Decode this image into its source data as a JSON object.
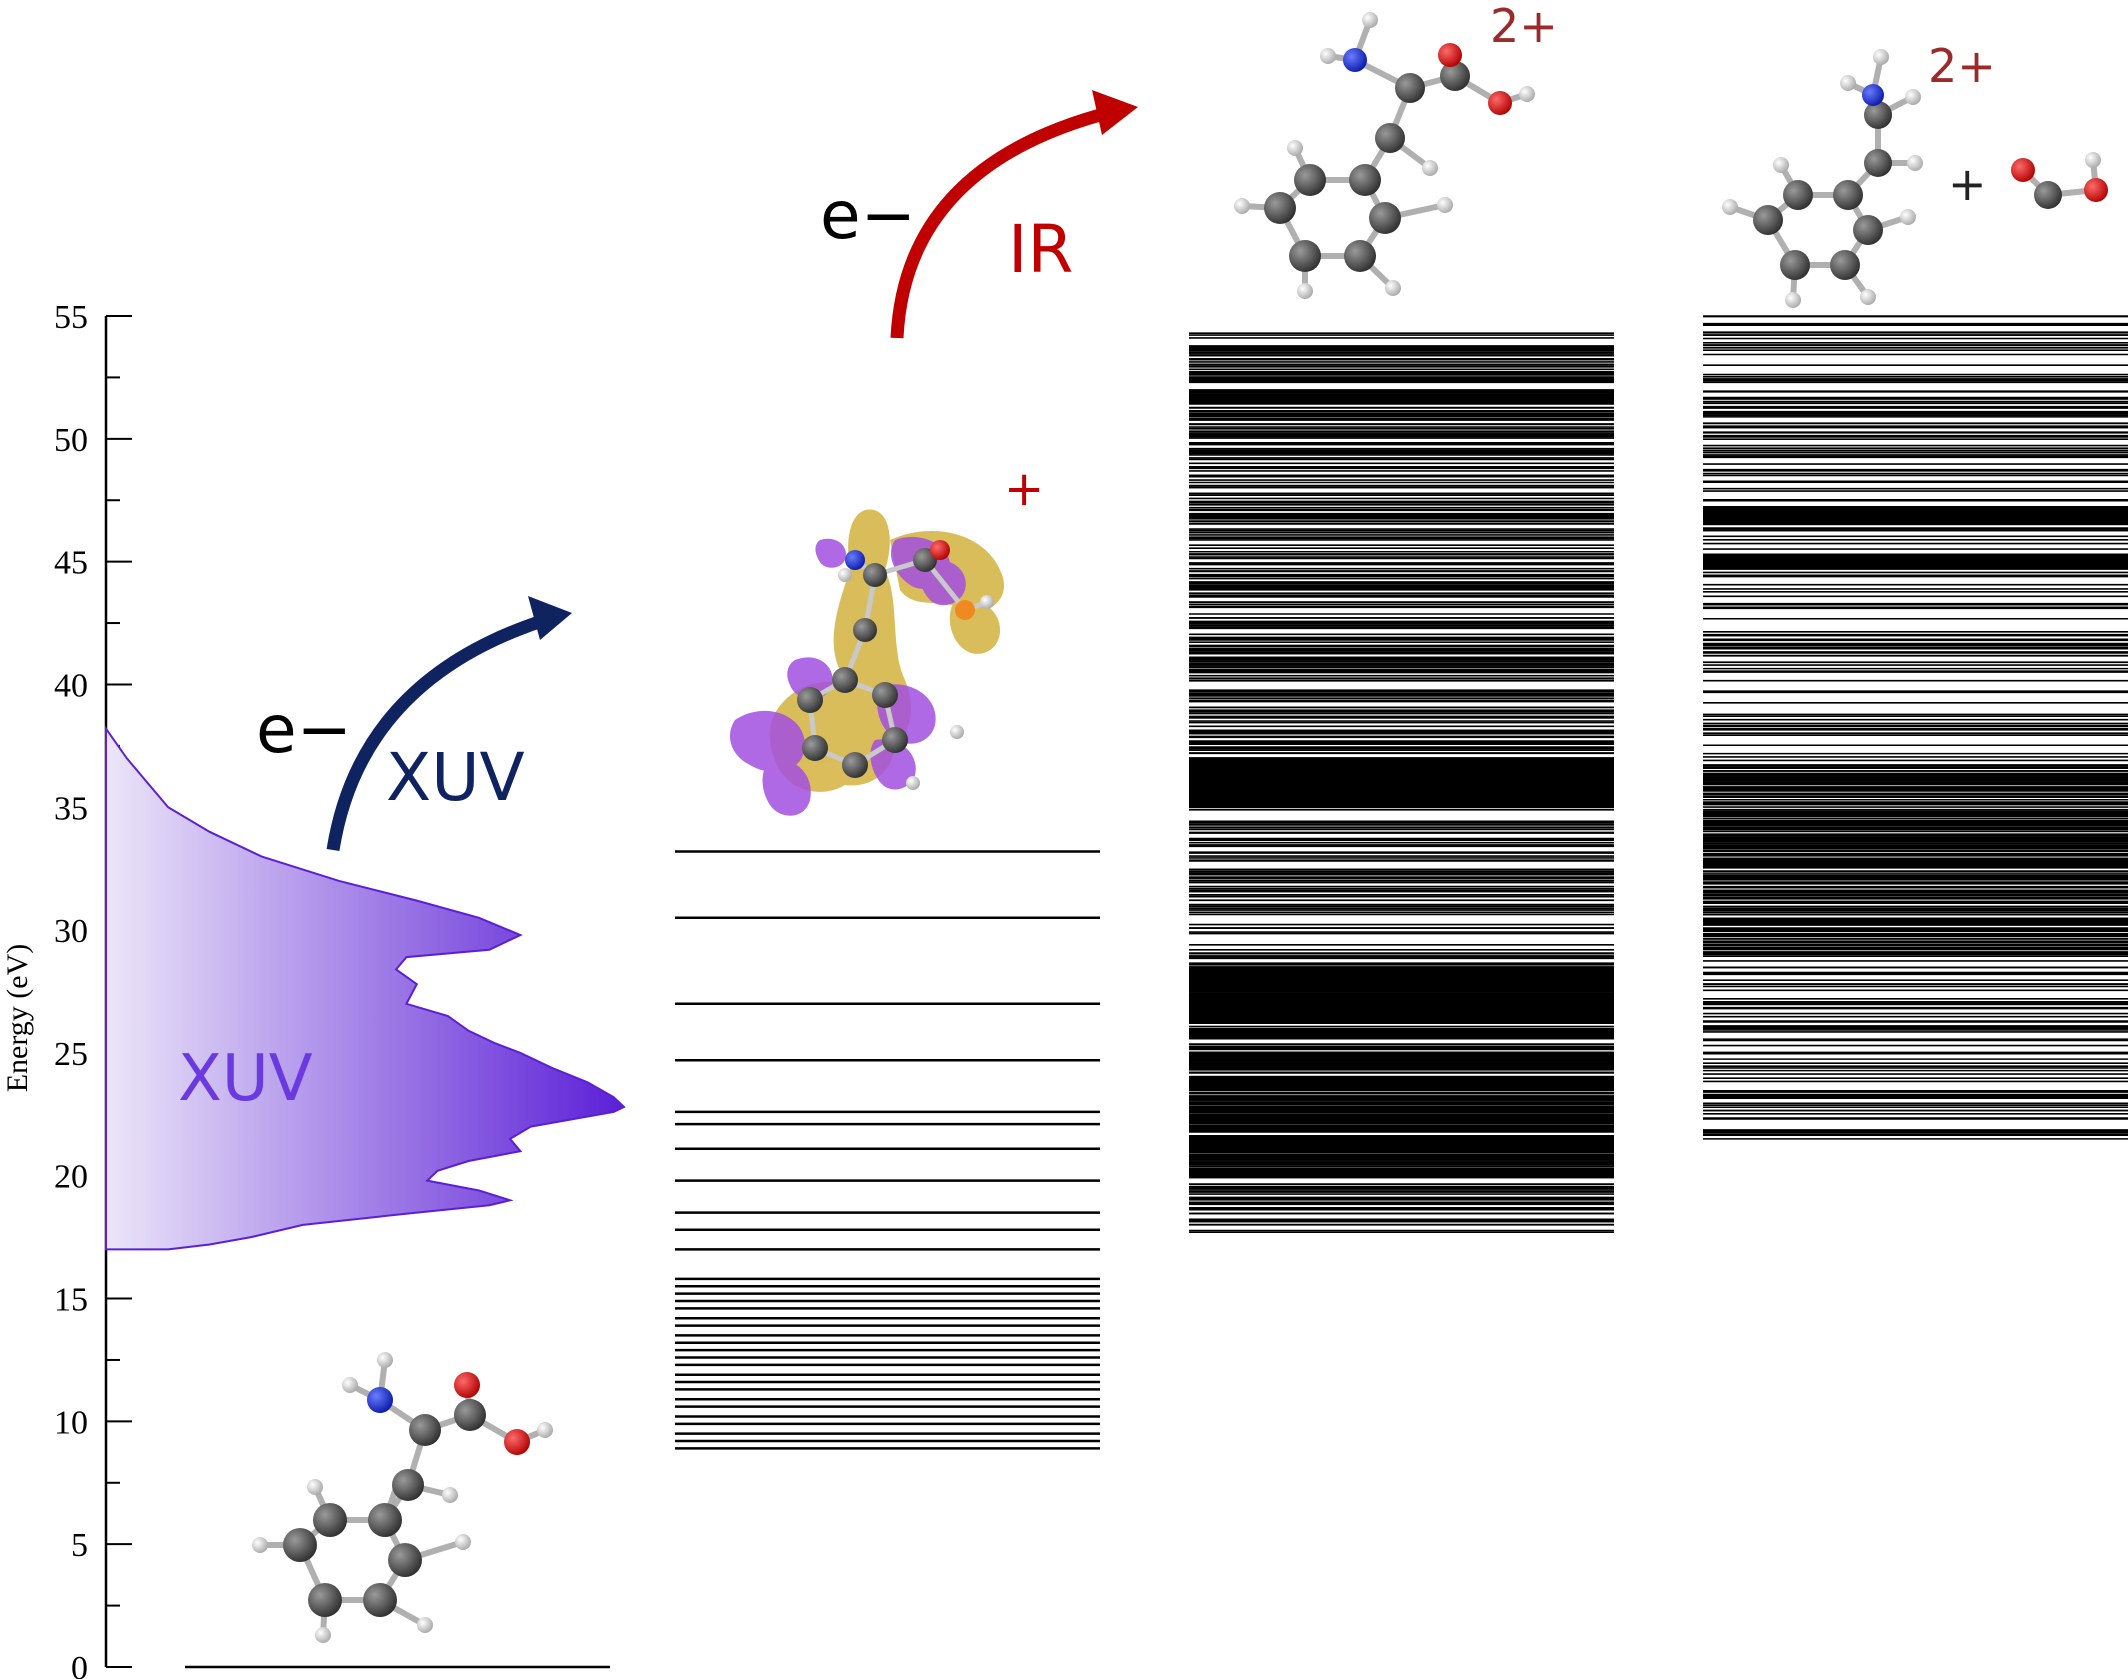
{
  "axis": {
    "title": "Energy (eV)",
    "min": 0,
    "max": 55,
    "major_ticks": [
      0,
      5,
      10,
      15,
      20,
      25,
      30,
      35,
      40,
      45,
      50,
      55
    ],
    "minor_step": 2.5
  },
  "colors": {
    "xuv_dark": "#5b1fd6",
    "xuv_light": "#ece6f9",
    "xuv_arrow": "#0e2360",
    "ir_arrow": "#c00000",
    "charge_label": "#9b2a2a",
    "isosurface_yellow": "#d7b64a",
    "isosurface_purple": "#a24fe0"
  },
  "labels": {
    "xuv_spectrum": "XUV",
    "xuv_arrow": "XUV",
    "ir_arrow": "IR",
    "electron_1": "e−",
    "electron_2": "e−",
    "cation_charge": "+",
    "dication_charge": "2+",
    "fragment_charge": "2+",
    "fragment_plus": "+"
  },
  "chart_data": {
    "type": "energy-level-diagram",
    "ylabel": "Energy (eV)",
    "ylim": [
      0,
      55
    ],
    "xuv_spectrum": {
      "name": "XUV",
      "energy_eV": [
        38.2,
        37.0,
        36.0,
        35.0,
        34.0,
        33.0,
        32.0,
        31.2,
        30.5,
        29.8,
        29.2,
        28.9,
        28.4,
        27.8,
        27.0,
        26.5,
        25.9,
        25.4,
        25.0,
        24.4,
        23.8,
        23.2,
        22.8,
        22.6,
        22.3,
        22.0,
        21.5,
        21.0,
        20.6,
        20.2,
        19.8,
        19.4,
        19.0,
        18.8,
        18.5,
        18.0,
        17.5,
        17.2,
        17.0
      ],
      "relative_intensity": [
        0.0,
        0.04,
        0.08,
        0.12,
        0.2,
        0.3,
        0.45,
        0.6,
        0.72,
        0.8,
        0.74,
        0.58,
        0.56,
        0.6,
        0.58,
        0.66,
        0.7,
        0.75,
        0.8,
        0.86,
        0.93,
        0.98,
        1.0,
        0.98,
        0.9,
        0.82,
        0.78,
        0.8,
        0.7,
        0.64,
        0.62,
        0.72,
        0.78,
        0.74,
        0.6,
        0.38,
        0.28,
        0.2,
        0.12
      ]
    },
    "ground_state_eV": [
      0
    ],
    "cation_states_eV": [
      33.2,
      30.5,
      27.0,
      24.7,
      22.6,
      22.1,
      21.1,
      19.8,
      18.5,
      17.8,
      17.0,
      15.8,
      15.5,
      15.2,
      14.9,
      14.6,
      14.2,
      13.9,
      13.5,
      13.2,
      12.9,
      12.6,
      12.3,
      11.9,
      11.6,
      11.3,
      10.9,
      10.6,
      10.2,
      9.9,
      9.5,
      9.2,
      8.9
    ],
    "dication_states_eV": {
      "range": [
        17.7,
        54.3
      ],
      "count": 1200,
      "dense_bands": [
        [
          20.0,
          28.5
        ],
        [
          35.0,
          37.0
        ],
        [
          51.5,
          51.8
        ]
      ]
    },
    "fragment_states_eV": {
      "range": [
        21.5,
        55.0
      ],
      "count": 650,
      "dense_bands": [
        [
          29.0,
          36.5
        ],
        [
          44.7,
          45.3
        ],
        [
          46.5,
          47.2
        ]
      ]
    }
  }
}
